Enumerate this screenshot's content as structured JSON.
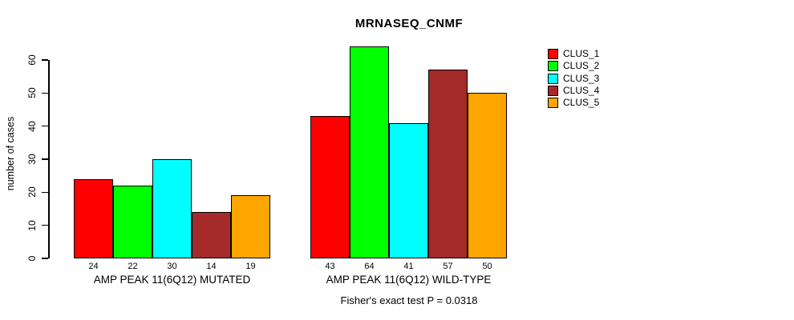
{
  "chart_data": {
    "type": "bar",
    "title": "MRNASEQ_CNMF",
    "ylabel": "number of cases",
    "xlabel": "",
    "ylim": [
      0,
      60
    ],
    "yticks": [
      0,
      10,
      20,
      30,
      40,
      50,
      60
    ],
    "grid": false,
    "legend_position": "right",
    "categories": [
      "AMP PEAK 11(6Q12) MUTATED",
      "AMP PEAK 11(6Q12) WILD-TYPE"
    ],
    "series": [
      {
        "name": "CLUS_1",
        "color": "#FF0000",
        "values": [
          24,
          43
        ]
      },
      {
        "name": "CLUS_2",
        "color": "#00FF00",
        "values": [
          22,
          64
        ]
      },
      {
        "name": "CLUS_3",
        "color": "#00FFFF",
        "values": [
          30,
          41
        ]
      },
      {
        "name": "CLUS_4",
        "color": "#A52A2A",
        "values": [
          14,
          57
        ]
      },
      {
        "name": "CLUS_5",
        "color": "#FFA500",
        "values": [
          19,
          50
        ]
      }
    ],
    "bar_value_labels": true,
    "annotation": "Fisher's exact test P = 0.0318"
  },
  "colors": {
    "background": "#FFFFFF",
    "axis": "#000000",
    "bar_border": "#000000",
    "text": "#000000"
  }
}
